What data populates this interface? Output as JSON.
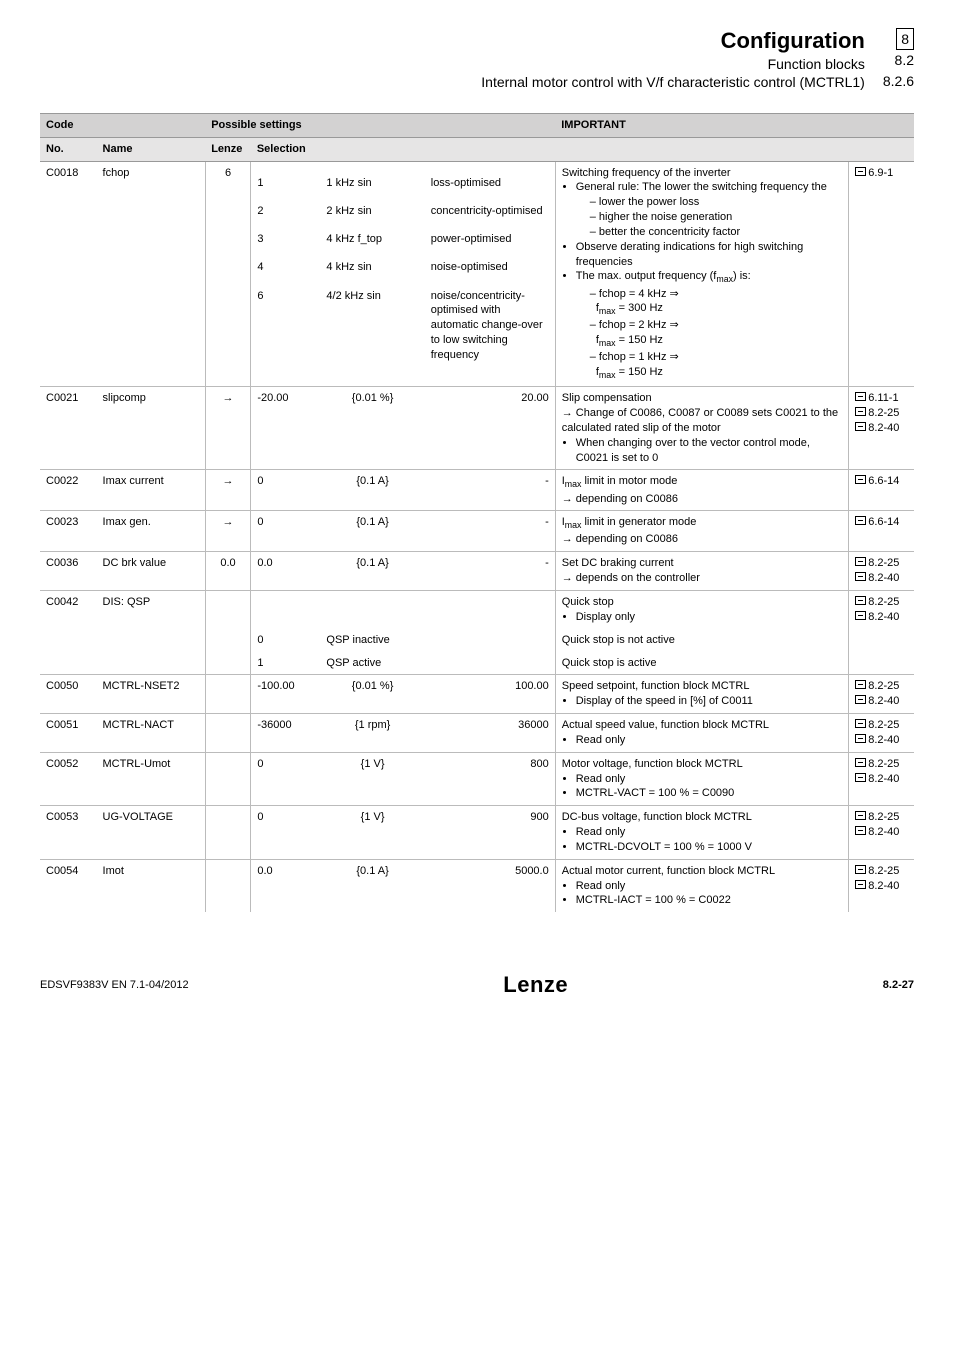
{
  "header": {
    "title": "Configuration",
    "sub1": "Function blocks",
    "sub2": "Internal motor control with V/f characteristic control (MCTRL1)",
    "nums": {
      "a": "8",
      "b": "8.2",
      "c": "8.2.6"
    }
  },
  "thead": {
    "code": "Code",
    "possible_settings": "Possible settings",
    "important": "IMPORTANT",
    "no": "No.",
    "name": "Name",
    "lenze": "Lenze",
    "selection": "Selection"
  },
  "footer": {
    "left": "EDSVF9383V EN 7.1-04/2012",
    "logo": "Lenze",
    "page": "8.2-27"
  },
  "c0018": {
    "no": "C0018",
    "name": "fchop",
    "lenze": "6",
    "imp_top": "Switching frequency of the inverter",
    "ref": "6.9-1",
    "rows": [
      {
        "n": "1",
        "a": "1 kHz sin",
        "b": "loss-optimised"
      },
      {
        "n": "2",
        "a": "2 kHz sin",
        "b": "concentricity-optimised"
      },
      {
        "n": "3",
        "a": "4 kHz f_top",
        "b": "power-optimised"
      },
      {
        "n": "4",
        "a": "4 kHz sin",
        "b": "noise-optimised"
      },
      {
        "n": "6",
        "a": "4/2 kHz sin",
        "b": "noise/concentricity-optimised with automatic change-over to low switching frequency"
      }
    ],
    "bul1": "General rule: The lower the switching frequency the",
    "d1": "lower the power loss",
    "d2": "higher the noise generation",
    "d3": "better the concentricity factor",
    "bul2": "Observe derating indications for high switching frequencies",
    "bul3_a": "The max. output frequency (f",
    "bul3_b": ") is:",
    "f1a": "fchop = 4 kHz ⇒",
    "f1b_a": "f",
    "f1b_b": " = 300 Hz",
    "f2a": "fchop = 2 kHz ⇒",
    "f2b_a": "f",
    "f2b_b": " = 150 Hz",
    "f3a": "fchop = 1 kHz ⇒",
    "f3b_a": "f",
    "f3b_b": " = 150 Hz"
  },
  "c0021": {
    "no": "C0021",
    "name": "slipcomp",
    "lenze": "→",
    "s_min": "-20.00",
    "s_step": "{0.01 %}",
    "s_max": "20.00",
    "imp_title": "Slip compensation",
    "arrow": "→ Change of C0086, C0087 or C0089 sets C0021 to the calculated rated slip of the motor",
    "bul": "When changing over to the vector control mode, C0021 is set to 0",
    "refs": [
      "6.11-1",
      "8.2-25",
      "8.2-40"
    ]
  },
  "c0022": {
    "no": "C0022",
    "name": "Imax current",
    "lenze": "→",
    "s_min": "0",
    "s_step": "{0.1 A}",
    "s_max": "-",
    "imp_a": "I",
    "imp_b": " limit in motor mode",
    "arrow": "→ depending on C0086",
    "ref": "6.6-14"
  },
  "c0023": {
    "no": "C0023",
    "name": "Imax gen.",
    "lenze": "→",
    "s_min": "0",
    "s_step": "{0.1 A}",
    "s_max": "-",
    "imp_a": "I",
    "imp_b": " limit in generator mode",
    "arrow": "→ depending on C0086",
    "ref": "6.6-14"
  },
  "c0036": {
    "no": "C0036",
    "name": "DC brk value",
    "lenze": "0.0",
    "s_min": "0.0",
    "s_step": "{0.1 A}",
    "s_max": "-",
    "imp": "Set DC braking current",
    "arrow": "→ depends on the controller",
    "refs": [
      "8.2-25",
      "8.2-40"
    ]
  },
  "c0042": {
    "no": "C0042",
    "name": "DIS: QSP",
    "imp_top": "Quick stop",
    "bullet": "Display only",
    "r0n": "0",
    "r0t": "QSP inactive",
    "r0i": "Quick stop is not active",
    "r1n": "1",
    "r1t": "QSP active",
    "r1i": "Quick stop is active",
    "refs": [
      "8.2-25",
      "8.2-40"
    ]
  },
  "c0050": {
    "no": "C0050",
    "name": "MCTRL-NSET2",
    "s_min": "-100.00",
    "s_step": "{0.01 %}",
    "s_max": "100.00",
    "imp": "Speed setpoint, function block MCTRL",
    "bul": "Display of the speed in [%] of C0011",
    "refs": [
      "8.2-25",
      "8.2-40"
    ]
  },
  "c0051": {
    "no": "C0051",
    "name": "MCTRL-NACT",
    "s_min": "-36000",
    "s_step": "{1 rpm}",
    "s_max": "36000",
    "imp": "Actual speed value, function block MCTRL",
    "bul": "Read only",
    "refs": [
      "8.2-25",
      "8.2-40"
    ]
  },
  "c0052": {
    "no": "C0052",
    "name": "MCTRL-Umot",
    "s_min": "0",
    "s_step": "{1 V}",
    "s_max": "800",
    "imp": "Motor voltage, function block MCTRL",
    "bul1": "Read only",
    "bul2": "MCTRL-VACT = 100 % = C0090",
    "refs": [
      "8.2-25",
      "8.2-40"
    ]
  },
  "c0053": {
    "no": "C0053",
    "name": "UG-VOLTAGE",
    "s_min": "0",
    "s_step": "{1 V}",
    "s_max": "900",
    "imp": "DC-bus voltage, function block MCTRL",
    "bul1": "Read only",
    "bul2": "MCTRL-DCVOLT = 100 % = 1000 V",
    "refs": [
      "8.2-25",
      "8.2-40"
    ]
  },
  "c0054": {
    "no": "C0054",
    "name": "Imot",
    "s_min": "0.0",
    "s_step": "{0.1 A}",
    "s_max": "5000.0",
    "imp": "Actual motor current, function block MCTRL",
    "bul1": "Read only",
    "bul2": "MCTRL-IACT = 100 % = C0022",
    "refs": [
      "8.2-25",
      "8.2-40"
    ]
  }
}
